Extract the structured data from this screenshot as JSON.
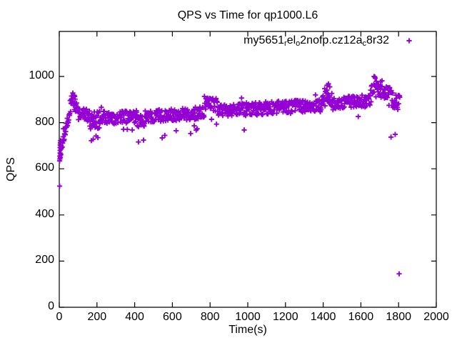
{
  "title": "QPS vs Time for qp1000.L6",
  "colors": {
    "series": "#9400d3",
    "axis": "#000000",
    "text": "#000000",
    "background": "#ffffff"
  },
  "legend": {
    "marker": "plus",
    "label_segments": [
      {
        "text": "my5651",
        "sub": false
      },
      {
        "text": "r",
        "sub": true
      },
      {
        "text": "el",
        "sub": false
      },
      {
        "text": "o",
        "sub": true
      },
      {
        "text": "2nofp.cz12a",
        "sub": false
      },
      {
        "text": "c",
        "sub": true
      },
      {
        "text": "8r32",
        "sub": false
      }
    ]
  },
  "chart_data": {
    "type": "scatter",
    "title": "QPS vs Time for qp1000.L6",
    "xlabel": "Time(s)",
    "ylabel": "QPS",
    "xlim": [
      0,
      2000
    ],
    "ylim": [
      0,
      1195
    ],
    "xticks": [
      0,
      200,
      400,
      600,
      800,
      1000,
      1200,
      1400,
      1600,
      1800,
      2000
    ],
    "yticks": [
      0,
      200,
      400,
      600,
      800,
      1000
    ],
    "grid": false,
    "legend_position": "top-right-inside",
    "marker": "plus",
    "series_name": "my5651_rel_o2nofp.cz12a_c8r32",
    "sample_every_s": 2,
    "band_segments": [
      {
        "t0": 2,
        "t1": 12,
        "q0": 660,
        "q1": 700,
        "spread": 30
      },
      {
        "t0": 12,
        "t1": 58,
        "q0": 690,
        "q1": 855,
        "spread": 22
      },
      {
        "t0": 58,
        "t1": 100,
        "q0": 872,
        "q1": 868,
        "spread": 34
      },
      {
        "t0": 100,
        "t1": 160,
        "q0": 838,
        "q1": 832,
        "spread": 26
      },
      {
        "t0": 160,
        "t1": 215,
        "q0": 812,
        "q1": 815,
        "spread": 40
      },
      {
        "t0": 215,
        "t1": 410,
        "q0": 820,
        "q1": 826,
        "spread": 28
      },
      {
        "t0": 410,
        "t1": 460,
        "q0": 812,
        "q1": 818,
        "spread": 34
      },
      {
        "t0": 460,
        "t1": 770,
        "q0": 828,
        "q1": 843,
        "spread": 27
      },
      {
        "t0": 770,
        "t1": 845,
        "q0": 886,
        "q1": 876,
        "spread": 28
      },
      {
        "t0": 845,
        "t1": 985,
        "q0": 852,
        "q1": 858,
        "spread": 26
      },
      {
        "t0": 985,
        "t1": 1390,
        "q0": 858,
        "q1": 874,
        "spread": 28
      },
      {
        "t0": 1390,
        "t1": 1448,
        "q0": 912,
        "q1": 903,
        "spread": 38
      },
      {
        "t0": 1448,
        "t1": 1650,
        "q0": 880,
        "q1": 896,
        "spread": 27
      },
      {
        "t0": 1650,
        "t1": 1705,
        "q0": 938,
        "q1": 948,
        "spread": 36
      },
      {
        "t0": 1705,
        "t1": 1762,
        "q0": 933,
        "q1": 928,
        "spread": 26
      },
      {
        "t0": 1762,
        "t1": 1808,
        "q0": 898,
        "q1": 882,
        "spread": 33
      }
    ],
    "start_cluster": [
      [
        2,
        525
      ],
      [
        3,
        642
      ],
      [
        3,
        655
      ],
      [
        4,
        668
      ],
      [
        4,
        680
      ],
      [
        5,
        692
      ],
      [
        5,
        703
      ],
      [
        6,
        712
      ],
      [
        7,
        722
      ],
      [
        8,
        660
      ],
      [
        9,
        700
      ]
    ],
    "outliers": [
      [
        65,
        915
      ],
      [
        72,
        928
      ],
      [
        80,
        918
      ],
      [
        170,
        722
      ],
      [
        180,
        728
      ],
      [
        195,
        742
      ],
      [
        205,
        735
      ],
      [
        420,
        716
      ],
      [
        447,
        724
      ],
      [
        620,
        765
      ],
      [
        697,
        753
      ],
      [
        981,
        768
      ],
      [
        1420,
        962
      ],
      [
        1428,
        968
      ],
      [
        1435,
        955
      ],
      [
        1670,
        1000
      ],
      [
        1676,
        992
      ],
      [
        1712,
        981
      ],
      [
        1760,
        737
      ],
      [
        1782,
        749
      ],
      [
        1803,
        145
      ]
    ]
  }
}
